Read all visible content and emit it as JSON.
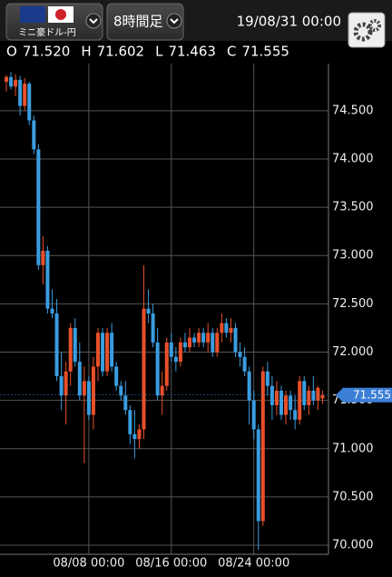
{
  "header": {
    "instrument": "ミニ豪ドル-円",
    "timeframe": "8時間足",
    "datetime": "19/08/31 00:00",
    "ohlc": [
      {
        "letter": "O",
        "value": "71.520"
      },
      {
        "letter": "H",
        "value": "71.602"
      },
      {
        "letter": "L",
        "value": "71.463"
      },
      {
        "letter": "C",
        "value": "71.555"
      }
    ]
  },
  "chart_data": {
    "type": "candlestick",
    "up_color": "#e8502a",
    "down_color": "#3a9de0",
    "grid": true,
    "categories": [
      null,
      null,
      null,
      null,
      null,
      null,
      null,
      null,
      null,
      null,
      null,
      null,
      null,
      null,
      null,
      null,
      null,
      null,
      "08/08 00:00",
      null,
      null,
      null,
      null,
      null,
      null,
      null,
      null,
      null,
      null,
      null,
      null,
      null,
      null,
      null,
      null,
      null,
      "08/16 00:00",
      null,
      null,
      null,
      null,
      null,
      null,
      null,
      null,
      null,
      null,
      null,
      null,
      null,
      null,
      null,
      null,
      null,
      "08/24 00:00",
      null,
      null,
      null,
      null,
      null,
      null,
      null,
      null,
      null,
      null,
      null,
      null,
      null,
      null,
      null
    ],
    "open": [
      74.8,
      74.85,
      74.75,
      74.82,
      74.55,
      74.78,
      74.4,
      74.1,
      72.9,
      73.05,
      72.45,
      72.4,
      71.75,
      71.55,
      71.8,
      72.25,
      71.9,
      71.55,
      71.7,
      71.35,
      71.85,
      72.2,
      71.8,
      72.2,
      71.85,
      71.65,
      71.55,
      71.4,
      71.15,
      71.1,
      71.2,
      72.45,
      72.4,
      72.1,
      71.55,
      71.65,
      72.1,
      71.95,
      71.9,
      72.1,
      72.05,
      72.15,
      72.1,
      72.2,
      72.1,
      72.2,
      72.0,
      72.2,
      72.3,
      72.2,
      72.25,
      72.0,
      71.95,
      71.8,
      71.5,
      71.2,
      70.25,
      71.8,
      71.65,
      71.45,
      71.6,
      71.35,
      71.55,
      71.4,
      71.3,
      71.7,
      71.45,
      71.6,
      71.5,
      71.52
    ],
    "high": [
      74.87,
      74.9,
      74.88,
      74.86,
      74.84,
      74.8,
      74.45,
      74.15,
      73.2,
      73.1,
      72.65,
      72.55,
      72.0,
      71.9,
      72.3,
      72.35,
      72.1,
      71.85,
      71.75,
      71.95,
      72.25,
      72.25,
      72.25,
      72.3,
      71.9,
      71.7,
      71.7,
      71.45,
      71.4,
      71.25,
      72.9,
      72.65,
      72.5,
      72.25,
      71.8,
      72.15,
      72.2,
      72.05,
      72.15,
      72.2,
      72.25,
      72.2,
      72.25,
      72.25,
      72.3,
      72.25,
      72.25,
      72.4,
      72.35,
      72.35,
      72.3,
      72.1,
      72.05,
      71.85,
      71.6,
      71.25,
      71.85,
      71.9,
      71.75,
      71.7,
      71.65,
      71.6,
      71.6,
      71.55,
      71.75,
      71.75,
      71.65,
      71.75,
      71.65,
      71.602
    ],
    "low": [
      74.7,
      74.72,
      74.65,
      74.45,
      74.5,
      74.35,
      74.05,
      72.85,
      72.7,
      72.4,
      72.35,
      71.7,
      71.4,
      71.25,
      71.65,
      71.85,
      71.5,
      70.85,
      71.3,
      71.2,
      71.7,
      71.75,
      71.75,
      71.8,
      71.6,
      71.5,
      71.35,
      71.05,
      70.9,
      71.0,
      71.1,
      72.3,
      72.05,
      71.5,
      71.35,
      71.6,
      71.9,
      71.8,
      71.85,
      72.0,
      72.0,
      72.05,
      72.05,
      72.05,
      72.0,
      71.95,
      71.95,
      72.1,
      72.15,
      72.1,
      71.95,
      71.85,
      71.75,
      71.25,
      71.1,
      69.95,
      70.2,
      71.55,
      71.3,
      71.35,
      71.3,
      71.25,
      71.3,
      71.2,
      71.25,
      71.4,
      71.35,
      71.45,
      71.4,
      71.463
    ],
    "close": [
      74.85,
      74.75,
      74.82,
      74.55,
      74.78,
      74.4,
      74.1,
      72.9,
      73.05,
      72.45,
      72.4,
      71.75,
      71.55,
      71.8,
      72.25,
      71.9,
      71.55,
      71.7,
      71.35,
      71.85,
      72.2,
      71.8,
      72.2,
      71.85,
      71.65,
      71.55,
      71.4,
      71.15,
      71.1,
      71.2,
      72.45,
      72.4,
      72.1,
      71.55,
      71.65,
      72.1,
      71.95,
      71.9,
      72.1,
      72.05,
      72.15,
      72.1,
      72.2,
      72.1,
      72.2,
      72.0,
      72.2,
      72.3,
      72.2,
      72.25,
      72.0,
      71.95,
      71.8,
      71.5,
      71.2,
      70.25,
      71.8,
      71.65,
      71.45,
      71.6,
      71.35,
      71.55,
      71.4,
      71.3,
      71.7,
      71.45,
      71.6,
      71.5,
      71.63,
      71.555
    ],
    "last_price": 71.555,
    "ylim": [
      69.906,
      74.988
    ],
    "yticks": [
      {
        "value": 70,
        "label": "70.000"
      },
      {
        "value": 70.5,
        "label": "70.500"
      },
      {
        "value": 71,
        "label": "71.000"
      },
      {
        "value": 71.5,
        "label": "71.500"
      },
      {
        "value": 72,
        "label": "72.000"
      },
      {
        "value": 72.5,
        "label": "72.500"
      },
      {
        "value": 73,
        "label": "73.000"
      },
      {
        "value": 73.5,
        "label": "73.500"
      },
      {
        "value": 74,
        "label": "74.000"
      },
      {
        "value": 74.5,
        "label": "74.500"
      }
    ]
  }
}
